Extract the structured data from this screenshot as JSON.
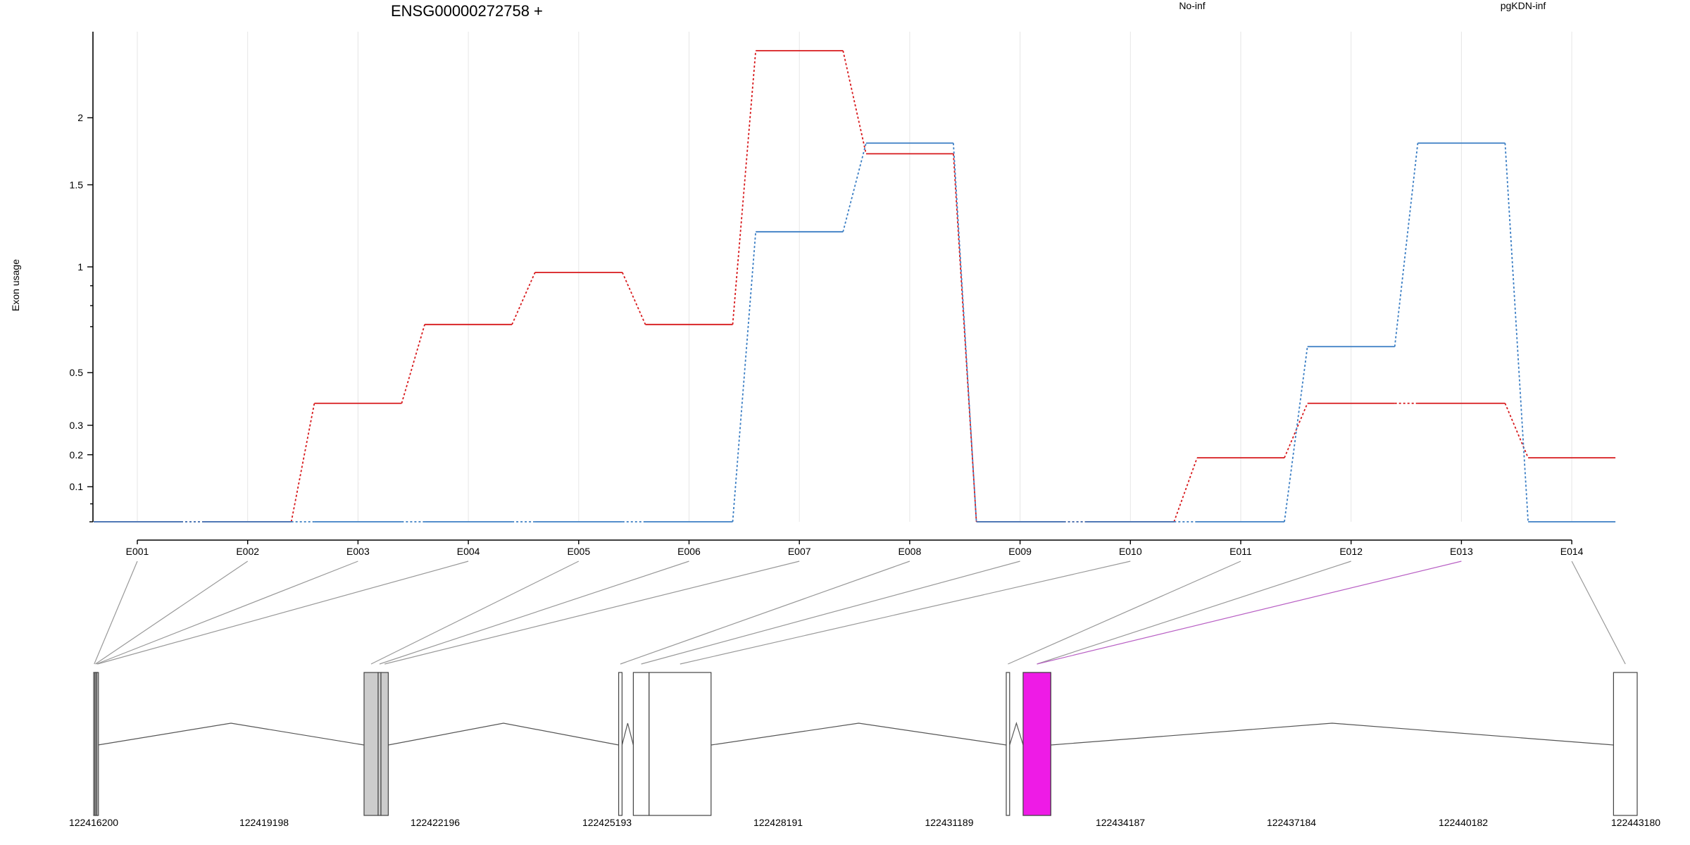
{
  "chart_data": {
    "type": "line",
    "title": "ENSG00000272758 +",
    "ylabel": "Exon usage",
    "y_transform": "log10(x+1)",
    "y_ticks": [
      0.1,
      0.2,
      0.3,
      0.5,
      1,
      1.5,
      2
    ],
    "y_tick_labels": [
      "0.1",
      "0.2",
      "0.3",
      "0.5",
      "1",
      "1.5",
      "2"
    ],
    "ylim": [
      0,
      2.6
    ],
    "grid": "vertical lines at each exon",
    "legend_position": "top",
    "categories": [
      "E001",
      "E002",
      "E003",
      "E004",
      "E005",
      "E006",
      "E007",
      "E008",
      "E009",
      "E010",
      "E011",
      "E012",
      "E013",
      "E014"
    ],
    "series": [
      {
        "name": "No-inf",
        "color": "#d7191c",
        "values": [
          0,
          0,
          0.38,
          0.71,
          0.97,
          0.71,
          2.6,
          1.72,
          0,
          0,
          0.19,
          0.38,
          0.38,
          0.19
        ]
      },
      {
        "name": "pgKDN-inf",
        "color": "#3b7ec4",
        "values": [
          0,
          0,
          0,
          0,
          0,
          0,
          1.2,
          1.8,
          0,
          0,
          0,
          0.61,
          1.8,
          0
        ]
      }
    ],
    "highlight_exon": "E013",
    "highlight_color": "#ee1be6",
    "genomic_ticks": [
      "122416200",
      "122419198",
      "122422196",
      "122425193",
      "122428191",
      "122431189",
      "122434187",
      "122437184",
      "122440182",
      "122443180"
    ],
    "gene_range": [
      122416200,
      122443600
    ],
    "exons": [
      {
        "id": "E001",
        "start": 122416200,
        "end": 122416220,
        "fill": "#ffffff"
      },
      {
        "id": "E002",
        "start": 122416220,
        "end": 122416240,
        "fill": "#ffffff"
      },
      {
        "id": "E003",
        "start": 122416240,
        "end": 122416260,
        "fill": "#ffffff"
      },
      {
        "id": "E004",
        "start": 122416260,
        "end": 122416275,
        "fill": "#ffffff"
      },
      {
        "id": "E005",
        "start": 122421000,
        "end": 122421250,
        "fill": "#cccccc"
      },
      {
        "id": "E006",
        "start": 122421250,
        "end": 122421300,
        "fill": "#cccccc"
      },
      {
        "id": "E007",
        "start": 122421300,
        "end": 122421430,
        "fill": "#cccccc"
      },
      {
        "id": "E008",
        "start": 122425520,
        "end": 122425580,
        "fill": "#ffffff"
      },
      {
        "id": "E009",
        "start": 122425780,
        "end": 122426060,
        "fill": "#ffffff"
      },
      {
        "id": "E010",
        "start": 122426060,
        "end": 122427160,
        "fill": "#ffffff"
      },
      {
        "id": "E011",
        "start": 122432400,
        "end": 122432460,
        "fill": "#ffffff"
      },
      {
        "id": "E012",
        "start": 122432700,
        "end": 122433190,
        "fill": "#ffffff"
      },
      {
        "id": "E013",
        "start": 122432700,
        "end": 122433190,
        "fill": "#ee1be6"
      },
      {
        "id": "E014",
        "start": 122443180,
        "end": 122443600,
        "fill": "#ffffff"
      }
    ]
  }
}
